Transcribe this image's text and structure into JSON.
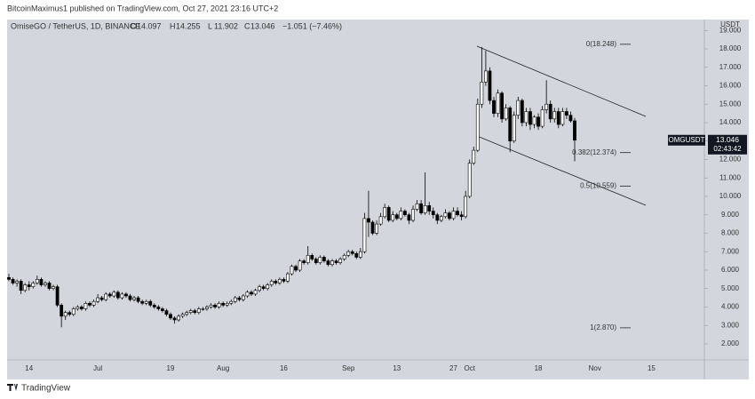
{
  "header": "BitcoinMaximus1 published on TradingView.com, Oct 27, 2021 23:16 UTC+2",
  "footer": "TradingView",
  "chart_data": {
    "type": "candlestick",
    "title": "OmiseGO / TetherUS, 1D, BINANCE",
    "ohlc_letters": [
      "O",
      "H",
      "L",
      "C"
    ],
    "change_label": "−1.051 (−7.46%)",
    "symbol_label": "OMGUSDT",
    "countdown": "02:43:42",
    "y_axis_label": "USDT",
    "up_color": "#ffffff",
    "down_color": "#000000",
    "ylim": [
      1.13,
      19.59
    ],
    "yticks": [
      {
        "value": 2,
        "label": "2.000"
      },
      {
        "value": 3,
        "label": "3.000"
      },
      {
        "value": 4,
        "label": "4.000"
      },
      {
        "value": 5,
        "label": "5.000"
      },
      {
        "value": 6,
        "label": "6.000"
      },
      {
        "value": 7,
        "label": "7.000"
      },
      {
        "value": 8,
        "label": "8.000"
      },
      {
        "value": 9,
        "label": "9.000"
      },
      {
        "value": 10,
        "label": "10.000"
      },
      {
        "value": 11,
        "label": "11.000"
      },
      {
        "value": 12,
        "label": "12.000"
      },
      {
        "value": 13,
        "label": "13.000"
      },
      {
        "value": 14,
        "label": "14.000"
      },
      {
        "value": 15,
        "label": "15.000"
      },
      {
        "value": 16,
        "label": "16.000"
      },
      {
        "value": 17,
        "label": "17.000"
      },
      {
        "value": 18,
        "label": "18.000"
      },
      {
        "value": 19,
        "label": "19.000"
      }
    ],
    "annotations": [
      {
        "text": "0(18.248)",
        "value": 18.248
      },
      {
        "text": "0.382(12.374)",
        "value": 12.374
      },
      {
        "text": "0.5(10.559)",
        "value": 10.559
      },
      {
        "text": "1(2.870)",
        "value": 2.87
      }
    ],
    "categories": [
      null,
      null,
      null,
      null,
      null,
      "14",
      null,
      null,
      null,
      null,
      null,
      null,
      null,
      null,
      null,
      null,
      null,
      null,
      null,
      null,
      null,
      null,
      "Jul",
      null,
      null,
      null,
      null,
      null,
      null,
      null,
      null,
      null,
      null,
      null,
      null,
      null,
      null,
      null,
      null,
      null,
      "19",
      null,
      null,
      null,
      null,
      null,
      null,
      null,
      null,
      null,
      null,
      null,
      null,
      "Aug",
      null,
      null,
      null,
      null,
      null,
      null,
      null,
      null,
      null,
      null,
      null,
      null,
      null,
      null,
      "16",
      null,
      null,
      null,
      null,
      null,
      null,
      null,
      null,
      null,
      null,
      null,
      null,
      null,
      null,
      null,
      "Sep",
      null,
      null,
      null,
      null,
      null,
      null,
      null,
      null,
      null,
      null,
      null,
      "13",
      null,
      null,
      null,
      null,
      null,
      null,
      null,
      null,
      null,
      null,
      null,
      null,
      null,
      "27",
      null,
      null,
      null,
      "Oct",
      null,
      null,
      null,
      null,
      null,
      null,
      null,
      null,
      null,
      null,
      null,
      null,
      null,
      null,
      null,
      null,
      "18",
      null,
      null,
      null,
      null,
      null,
      null,
      null,
      null,
      null,
      null,
      null,
      null,
      null,
      "Nov",
      null,
      null,
      null,
      null,
      null,
      null,
      null,
      null,
      null,
      null,
      null,
      null,
      null,
      "15",
      null,
      null,
      null,
      null,
      null,
      null,
      null,
      null,
      null,
      null,
      null,
      null
    ],
    "open": [
      5.6,
      5.5,
      5.3,
      5.4,
      4.9,
      5.2,
      5.1,
      5.3,
      5.5,
      5.2,
      5.3,
      5.0,
      5.1,
      4.1,
      3.5,
      3.7,
      3.6,
      3.9,
      4.0,
      3.9,
      4.2,
      4.1,
      4.3,
      4.5,
      4.4,
      4.7,
      4.6,
      4.8,
      4.5,
      4.7,
      4.6,
      4.4,
      4.5,
      4.3,
      4.2,
      4.3,
      4.1,
      4.0,
      3.9,
      3.8,
      3.6,
      3.4,
      3.3,
      3.5,
      3.6,
      3.7,
      3.8,
      3.7,
      3.9,
      3.9,
      4.0,
      4.1,
      4.0,
      4.2,
      4.1,
      4.2,
      4.3,
      4.5,
      4.4,
      4.6,
      4.8,
      4.7,
      4.9,
      5.1,
      5.0,
      5.2,
      5.4,
      5.3,
      5.5,
      5.4,
      5.8,
      6.2,
      6.0,
      6.5,
      6.4,
      6.8,
      6.6,
      6.4,
      6.7,
      6.5,
      6.3,
      6.5,
      6.4,
      6.6,
      6.8,
      7.0,
      6.9,
      6.7,
      7.0,
      8.8,
      8.6,
      8.0,
      8.5,
      8.9,
      9.4,
      8.7,
      9.0,
      8.8,
      9.2,
      9.0,
      8.7,
      9.3,
      9.6,
      9.1,
      9.5,
      9.2,
      9.0,
      8.7,
      8.9,
      9.1,
      8.8,
      9.2,
      9.0,
      8.9,
      10.0,
      11.8,
      12.5,
      15.0,
      16.2,
      16.8,
      15.2,
      14.5,
      15.6,
      14.2,
      14.8,
      13.0,
      14.4,
      15.2,
      14.0,
      14.6,
      13.9,
      14.3,
      13.8,
      14.7,
      15.0,
      14.2,
      14.6,
      13.9,
      14.6,
      14.4,
      14.097,
      null,
      null,
      null,
      null,
      null,
      null,
      null,
      null,
      null,
      null,
      null,
      null,
      null,
      null,
      null,
      null,
      null,
      null,
      null,
      null,
      null,
      null,
      null,
      null,
      null,
      null,
      null,
      null,
      null,
      null,
      null
    ],
    "high": [
      5.8,
      5.6,
      5.5,
      5.5,
      5.3,
      5.4,
      5.4,
      5.7,
      5.6,
      5.4,
      5.4,
      5.2,
      5.2,
      4.2,
      3.8,
      3.8,
      4.0,
      4.1,
      4.1,
      4.3,
      4.3,
      4.4,
      4.7,
      4.6,
      4.8,
      4.8,
      4.9,
      4.9,
      4.8,
      4.8,
      4.7,
      4.6,
      4.6,
      4.4,
      4.4,
      4.4,
      4.2,
      4.1,
      4.0,
      3.9,
      3.7,
      3.5,
      3.6,
      3.7,
      3.8,
      3.9,
      3.9,
      4.0,
      4.0,
      4.1,
      4.2,
      4.2,
      4.3,
      4.3,
      4.3,
      4.4,
      4.6,
      4.6,
      4.7,
      4.9,
      4.9,
      5.0,
      5.2,
      5.2,
      5.3,
      5.5,
      5.5,
      5.6,
      5.6,
      5.9,
      6.3,
      6.3,
      6.6,
      6.6,
      7.3,
      6.9,
      6.7,
      6.8,
      6.8,
      6.6,
      6.6,
      6.6,
      6.7,
      6.9,
      7.1,
      7.1,
      7.0,
      7.2,
      9.1,
      10.3,
      8.7,
      8.7,
      9.1,
      9.6,
      9.5,
      9.2,
      9.1,
      9.4,
      9.3,
      9.1,
      9.5,
      9.8,
      9.8,
      11.3,
      9.7,
      9.4,
      9.1,
      9.0,
      9.3,
      9.2,
      9.4,
      9.4,
      9.2,
      10.3,
      12.0,
      12.7,
      15.3,
      18.1,
      17.9,
      17.0,
      15.4,
      15.8,
      15.7,
      15.0,
      14.9,
      14.6,
      15.4,
      15.3,
      14.8,
      14.8,
      14.4,
      14.5,
      14.9,
      16.3,
      15.2,
      14.8,
      14.8,
      14.8,
      14.8,
      14.6,
      14.255,
      null,
      null,
      null,
      null,
      null,
      null,
      null,
      null,
      null,
      null,
      null,
      null,
      null,
      null,
      null,
      null,
      null,
      null,
      null,
      null,
      null,
      null,
      null,
      null,
      null,
      null,
      null,
      null,
      null,
      null,
      null
    ],
    "low": [
      5.4,
      5.2,
      5.1,
      4.7,
      4.8,
      4.9,
      5.0,
      5.2,
      5.1,
      5.1,
      4.9,
      4.9,
      4.0,
      2.9,
      3.3,
      3.5,
      3.5,
      3.8,
      3.8,
      3.8,
      4.0,
      4.0,
      4.2,
      4.3,
      4.3,
      4.5,
      4.5,
      4.4,
      4.4,
      4.5,
      4.3,
      4.3,
      4.2,
      4.1,
      4.1,
      4.0,
      3.9,
      3.8,
      3.7,
      3.5,
      3.3,
      3.1,
      3.2,
      3.4,
      3.5,
      3.6,
      3.6,
      3.6,
      3.8,
      3.8,
      3.9,
      3.9,
      3.9,
      4.0,
      4.0,
      4.1,
      4.2,
      4.3,
      4.3,
      4.5,
      4.6,
      4.6,
      4.8,
      4.9,
      4.9,
      5.1,
      5.2,
      5.2,
      5.3,
      5.3,
      5.7,
      5.9,
      5.9,
      6.3,
      6.3,
      6.5,
      6.3,
      6.3,
      6.4,
      6.2,
      6.2,
      6.3,
      6.3,
      6.5,
      6.7,
      6.8,
      6.6,
      6.6,
      6.9,
      7.8,
      7.9,
      7.9,
      8.4,
      8.8,
      8.6,
      8.6,
      8.7,
      8.7,
      8.9,
      8.5,
      8.6,
      9.2,
      9.0,
      9.0,
      9.0,
      8.8,
      8.5,
      8.6,
      8.8,
      8.7,
      8.7,
      8.9,
      8.7,
      8.8,
      9.9,
      11.7,
      12.4,
      14.8,
      16.0,
      15.0,
      14.3,
      14.3,
      14.0,
      14.1,
      12.4,
      12.9,
      14.2,
      13.8,
      13.8,
      13.6,
      13.7,
      13.6,
      13.7,
      14.5,
      14.0,
      14.0,
      13.7,
      13.8,
      14.2,
      14.0,
      11.902,
      null,
      null,
      null,
      null,
      null,
      null,
      null,
      null,
      null,
      null,
      null,
      null,
      null,
      null,
      null,
      null,
      null,
      null,
      null,
      null,
      null,
      null,
      null,
      null,
      null,
      null,
      null,
      null,
      null,
      null,
      null
    ],
    "close": [
      5.5,
      5.3,
      5.4,
      4.9,
      5.2,
      5.1,
      5.3,
      5.5,
      5.2,
      5.3,
      5.0,
      5.1,
      4.1,
      3.5,
      3.7,
      3.6,
      3.9,
      4.0,
      3.9,
      4.2,
      4.1,
      4.3,
      4.5,
      4.4,
      4.7,
      4.6,
      4.8,
      4.5,
      4.7,
      4.6,
      4.4,
      4.5,
      4.3,
      4.2,
      4.3,
      4.1,
      4.0,
      3.9,
      3.8,
      3.6,
      3.4,
      3.3,
      3.5,
      3.6,
      3.7,
      3.8,
      3.7,
      3.9,
      3.9,
      4.0,
      4.1,
      4.0,
      4.2,
      4.1,
      4.2,
      4.3,
      4.5,
      4.4,
      4.6,
      4.8,
      4.7,
      4.9,
      5.1,
      5.0,
      5.2,
      5.4,
      5.3,
      5.5,
      5.4,
      5.8,
      6.2,
      6.0,
      6.5,
      6.4,
      6.8,
      6.6,
      6.4,
      6.7,
      6.5,
      6.3,
      6.5,
      6.4,
      6.6,
      6.8,
      7.0,
      6.9,
      6.7,
      7.0,
      8.8,
      8.6,
      8.0,
      8.5,
      8.9,
      9.4,
      8.7,
      9.0,
      8.8,
      9.2,
      9.0,
      8.7,
      9.3,
      9.6,
      9.1,
      9.5,
      9.2,
      9.0,
      8.7,
      8.9,
      9.1,
      8.8,
      9.2,
      9.0,
      8.9,
      10.0,
      11.8,
      12.5,
      15.0,
      16.2,
      16.8,
      15.2,
      14.5,
      15.6,
      14.2,
      14.8,
      13.0,
      14.4,
      15.2,
      14.0,
      14.6,
      13.9,
      14.3,
      13.8,
      14.7,
      15.0,
      14.2,
      14.6,
      13.9,
      14.6,
      14.4,
      14.097,
      13.046,
      null,
      null,
      null,
      null,
      null,
      null,
      null,
      null,
      null,
      null,
      null,
      null,
      null,
      null,
      null,
      null,
      null,
      null,
      null,
      null,
      null,
      null,
      null,
      null,
      null,
      null,
      null,
      null,
      null,
      null,
      null
    ]
  }
}
